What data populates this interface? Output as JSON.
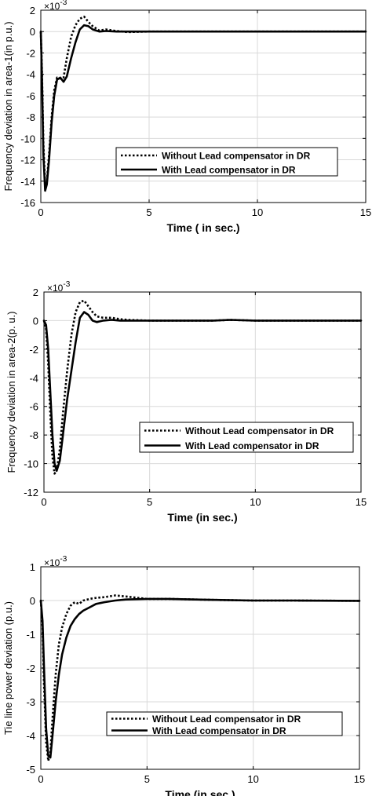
{
  "chart_data": [
    {
      "type": "line",
      "title": "",
      "xlabel": "Time ( in sec.)",
      "ylabel": "Frequency deviation in area-1(in p.u.)",
      "exponent": "×10",
      "exponent_power": "-3",
      "xlim": [
        0,
        15
      ],
      "ylim": [
        -16,
        2
      ],
      "xticks": [
        0,
        5,
        10,
        15
      ],
      "yticks": [
        -16,
        -14,
        -12,
        -10,
        -8,
        -6,
        -4,
        -2,
        0,
        2
      ],
      "grid": true,
      "legend": "lower-right",
      "series": [
        {
          "name": "Without Lead compensator in DR",
          "style": "dotted",
          "x": [
            0,
            0.05,
            0.12,
            0.2,
            0.28,
            0.38,
            0.5,
            0.62,
            0.75,
            0.9,
            1.05,
            1.2,
            1.4,
            1.6,
            1.8,
            2.0,
            2.2,
            2.4,
            2.7,
            3.0,
            3.5,
            4.0,
            5.0,
            6.0,
            8.0,
            10.0,
            12.0,
            15.0
          ],
          "y": [
            0,
            -3.5,
            -10.5,
            -14.3,
            -14.0,
            -11.5,
            -8.0,
            -5.5,
            -4.3,
            -4.4,
            -4.3,
            -2.5,
            -0.5,
            0.6,
            1.2,
            1.4,
            0.9,
            0.5,
            0.1,
            0.2,
            0.05,
            -0.05,
            0.0,
            0.0,
            0.0,
            0.0,
            0.0,
            0.0
          ]
        },
        {
          "name": "With Lead compensator in DR",
          "style": "solid",
          "x": [
            0,
            0.05,
            0.12,
            0.2,
            0.28,
            0.38,
            0.5,
            0.62,
            0.75,
            0.9,
            1.05,
            1.2,
            1.4,
            1.6,
            1.8,
            2.0,
            2.2,
            2.4,
            2.7,
            3.0,
            3.5,
            4.0,
            5.0,
            6.0,
            8.0,
            10.0,
            12.0,
            15.0
          ],
          "y": [
            0,
            -4.0,
            -11.5,
            -14.9,
            -14.3,
            -12.0,
            -8.5,
            -6.0,
            -4.5,
            -4.3,
            -4.7,
            -4.2,
            -2.5,
            -1.0,
            0.2,
            0.6,
            0.5,
            0.2,
            0.0,
            0.05,
            0.0,
            0.0,
            0.0,
            0.0,
            0.0,
            0.0,
            0.0,
            0.0
          ]
        }
      ]
    },
    {
      "type": "line",
      "title": "",
      "xlabel": "Time (in sec.)",
      "ylabel": "Frequency deviation in area-2(p. u.)",
      "exponent": "×10",
      "exponent_power": "-3",
      "xlim": [
        0,
        15
      ],
      "ylim": [
        -12,
        2
      ],
      "xticks": [
        0,
        5,
        10,
        15
      ],
      "yticks": [
        -12,
        -10,
        -8,
        -6,
        -4,
        -2,
        0,
        2
      ],
      "grid": true,
      "legend": "lower-right",
      "series": [
        {
          "name": "Without Lead compensator in DR",
          "style": "dotted",
          "x": [
            0,
            0.1,
            0.2,
            0.3,
            0.4,
            0.5,
            0.6,
            0.75,
            0.9,
            1.1,
            1.3,
            1.5,
            1.7,
            1.9,
            2.1,
            2.3,
            2.5,
            2.8,
            3.2,
            3.6,
            4.0,
            5.0,
            6.0,
            8.0,
            8.8,
            10.0,
            12.0,
            15.0
          ],
          "y": [
            0,
            -0.6,
            -3.0,
            -6.5,
            -9.5,
            -10.7,
            -10.5,
            -9.0,
            -6.5,
            -3.5,
            -1.0,
            0.6,
            1.3,
            1.4,
            1.0,
            0.6,
            0.3,
            0.2,
            0.2,
            0.1,
            0.05,
            0.0,
            0.0,
            0.0,
            0.05,
            0.0,
            0.0,
            0.0
          ]
        },
        {
          "name": "With Lead compensator in DR",
          "style": "solid",
          "x": [
            0,
            0.1,
            0.2,
            0.3,
            0.4,
            0.5,
            0.6,
            0.75,
            0.9,
            1.1,
            1.3,
            1.5,
            1.7,
            1.9,
            2.1,
            2.3,
            2.5,
            2.8,
            3.2,
            3.6,
            4.0,
            5.0,
            6.0,
            8.0,
            8.8,
            10.0,
            12.0,
            15.0
          ],
          "y": [
            0,
            -0.3,
            -2.0,
            -5.0,
            -8.0,
            -10.0,
            -10.5,
            -9.8,
            -8.0,
            -5.5,
            -3.5,
            -1.5,
            0.2,
            0.6,
            0.4,
            0.0,
            -0.1,
            0.0,
            0.05,
            0.0,
            0.0,
            0.0,
            0.0,
            0.0,
            0.05,
            0.0,
            0.0,
            0.0
          ]
        }
      ]
    },
    {
      "type": "line",
      "title": "",
      "xlabel": "Time (in sec.)",
      "ylabel": "Tie line power deviation (p.u.)",
      "exponent": "×10",
      "exponent_power": "-3",
      "xlim": [
        0,
        15
      ],
      "ylim": [
        -5,
        1
      ],
      "xticks": [
        0,
        5,
        10,
        15
      ],
      "yticks": [
        -5,
        -4,
        -3,
        -2,
        -1,
        0,
        1
      ],
      "grid": true,
      "legend": "lower-right",
      "series": [
        {
          "name": "Without Lead compensator in DR",
          "style": "dotted",
          "x": [
            0,
            0.08,
            0.15,
            0.25,
            0.35,
            0.45,
            0.55,
            0.7,
            0.85,
            1.0,
            1.2,
            1.4,
            1.6,
            1.8,
            2.0,
            2.3,
            2.6,
            3.0,
            3.5,
            4.0,
            5.0,
            6.0,
            8.0,
            10.0,
            12.0,
            15.0
          ],
          "y": [
            0,
            -0.8,
            -2.5,
            -4.2,
            -4.75,
            -4.5,
            -3.5,
            -2.2,
            -1.3,
            -0.8,
            -0.4,
            -0.15,
            -0.05,
            -0.1,
            0.0,
            0.05,
            0.08,
            0.1,
            0.15,
            0.12,
            0.05,
            0.05,
            0.02,
            0.0,
            0.0,
            -0.01
          ]
        },
        {
          "name": "With Lead compensator in DR",
          "style": "solid",
          "x": [
            0,
            0.08,
            0.15,
            0.25,
            0.35,
            0.45,
            0.55,
            0.7,
            0.85,
            1.0,
            1.2,
            1.4,
            1.6,
            1.8,
            2.0,
            2.3,
            2.6,
            3.0,
            3.5,
            4.0,
            5.0,
            6.0,
            8.0,
            10.0,
            12.0,
            15.0
          ],
          "y": [
            0,
            -0.6,
            -2.0,
            -3.8,
            -4.6,
            -4.65,
            -4.0,
            -3.0,
            -2.2,
            -1.6,
            -1.1,
            -0.75,
            -0.55,
            -0.4,
            -0.3,
            -0.2,
            -0.1,
            -0.05,
            0.0,
            0.03,
            0.05,
            0.05,
            0.02,
            0.0,
            0.0,
            -0.01
          ]
        }
      ]
    }
  ]
}
